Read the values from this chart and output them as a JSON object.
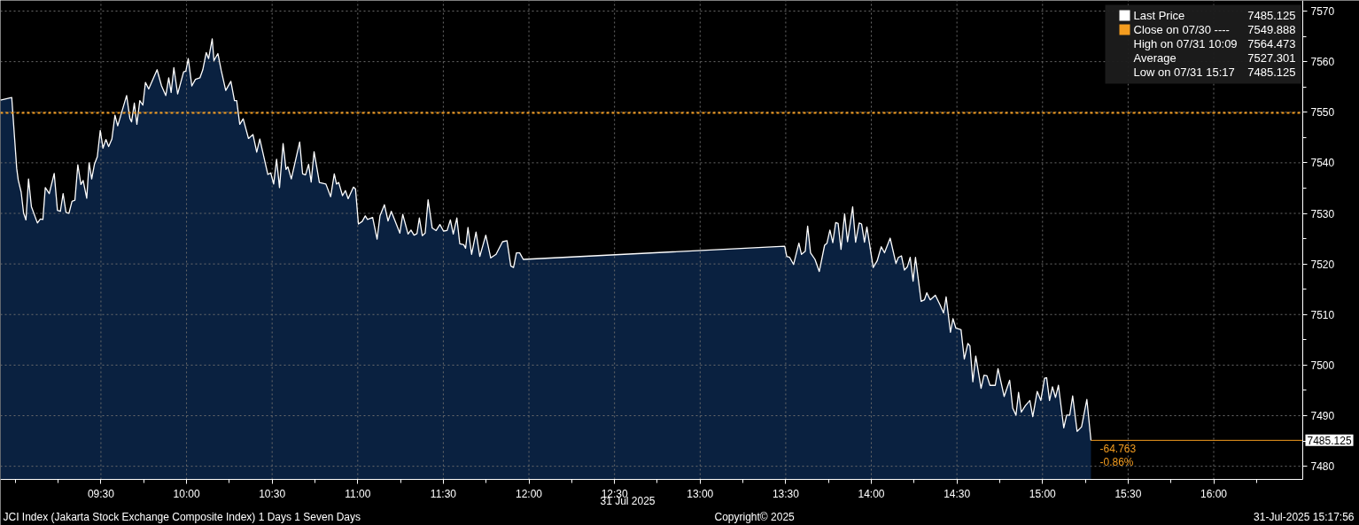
{
  "chart_data": {
    "type": "area",
    "title": "JCI Index (Jakarta Stock Exchange Composite Index) 1 Days 1 Seven Days",
    "xlabel": "31 Jul 2025",
    "x": [
      8.913,
      8.979,
      9.008,
      9.017,
      9.034,
      9.048,
      9.062,
      9.077,
      9.094,
      9.129,
      9.146,
      9.161,
      9.175,
      9.198,
      9.227,
      9.246,
      9.263,
      9.279,
      9.296,
      9.313,
      9.331,
      9.348,
      9.365,
      9.383,
      9.396,
      9.417,
      9.431,
      9.446,
      9.462,
      9.479,
      9.496,
      9.512,
      9.529,
      9.545,
      9.564,
      9.582,
      9.598,
      9.65,
      9.669,
      9.679,
      9.695,
      9.71,
      9.727,
      9.745,
      9.76,
      9.779,
      9.828,
      9.854,
      9.879,
      9.896,
      9.91,
      9.926,
      9.948,
      9.983,
      9.996,
      10.01,
      10.031,
      10.052,
      10.078,
      10.095,
      10.115,
      10.129,
      10.15,
      10.16,
      10.183,
      10.203,
      10.229,
      10.259,
      10.28,
      10.293,
      10.311,
      10.331,
      10.362,
      10.388,
      10.41,
      10.428,
      10.475,
      10.492,
      10.509,
      10.526,
      10.543,
      10.564,
      10.581,
      10.592,
      10.612,
      10.661,
      10.678,
      10.695,
      10.713,
      10.728,
      10.745,
      10.776,
      10.814,
      10.842,
      10.863,
      10.876,
      10.889,
      10.911,
      10.928,
      10.944,
      10.975,
      10.987,
      11.004,
      11.026,
      11.044,
      11.057,
      11.087,
      11.113,
      11.13,
      11.156,
      11.177,
      11.196,
      11.246,
      11.263,
      11.294,
      11.311,
      11.329,
      11.346,
      11.36,
      11.377,
      11.394,
      11.411,
      11.435,
      11.458,
      11.48,
      11.501,
      11.522,
      11.541,
      11.558,
      11.579,
      11.596,
      11.619,
      11.63,
      11.644,
      11.665,
      11.691,
      11.713,
      11.748,
      11.777,
      11.808,
      11.846,
      11.872,
      11.894,
      11.91,
      11.927,
      11.946,
      11.967,
      13.494,
      13.506,
      13.523,
      13.546,
      13.577,
      13.592,
      13.614,
      13.628,
      13.645,
      13.671,
      13.696,
      13.727,
      13.741,
      13.758,
      13.775,
      13.792,
      13.806,
      13.823,
      13.844,
      13.861,
      13.891,
      13.908,
      13.929,
      13.943,
      13.96,
      13.974,
      14.011,
      14.034,
      14.058,
      14.077,
      14.11,
      14.144,
      14.158,
      14.176,
      14.193,
      14.21,
      14.227,
      14.244,
      14.258,
      14.291,
      14.31,
      14.324,
      14.344,
      14.374,
      14.4,
      14.422,
      14.437,
      14.462,
      14.477,
      14.494,
      14.524,
      14.543,
      14.564,
      14.576,
      14.593,
      14.61,
      14.641,
      14.658,
      14.675,
      14.693,
      14.724,
      14.74,
      14.776,
      14.808,
      14.826,
      14.845,
      14.86,
      14.876,
      14.9,
      14.926,
      14.943,
      14.969,
      14.99,
      15.012,
      15.024,
      15.041,
      15.058,
      15.076,
      15.093,
      15.124,
      15.141,
      15.159,
      15.176,
      15.202,
      15.228,
      15.259,
      15.283
    ],
    "series": [
      {
        "name": "Last Price",
        "color": "#ffffff",
        "values": [
          7552.4,
          7552.9,
          7538.9,
          7536.6,
          7534.2,
          7530.1,
          7528.7,
          7536.8,
          7531.3,
          7528.1,
          7528.9,
          7528.8,
          7535.1,
          7533.9,
          7537.9,
          7530.6,
          7530.4,
          7533.9,
          7530.2,
          7530.0,
          7532.4,
          7532.6,
          7539.6,
          7535.7,
          7536.5,
          7533.0,
          7540.0,
          7536.8,
          7539.7,
          7541.2,
          7546.4,
          7542.9,
          7544.6,
          7543.2,
          7544.7,
          7549.4,
          7547.3,
          7553.3,
          7548.8,
          7548.1,
          7551.8,
          7547.6,
          7552.3,
          7551.4,
          7555.9,
          7554.6,
          7558.4,
          7555.2,
          7553.3,
          7556.8,
          7553.9,
          7558.8,
          7553.6,
          7558.0,
          7558.1,
          7560.6,
          7555.2,
          7556.5,
          7556.8,
          7558.4,
          7561.8,
          7560.6,
          7564.5,
          7560.2,
          7561.6,
          7558.2,
          7554.3,
          7556.1,
          7552.3,
          7552.3,
          7547.6,
          7548.7,
          7544.8,
          7545.6,
          7542.1,
          7544.7,
          7537.7,
          7538.0,
          7535.8,
          7540.7,
          7535.1,
          7543.8,
          7538.7,
          7539.2,
          7536.8,
          7544.1,
          7537.8,
          7537.6,
          7539.7,
          7536.2,
          7542.2,
          7536.1,
          7535.8,
          7533.3,
          7537.8,
          7535.8,
          7536.1,
          7533.5,
          7534.5,
          7532.9,
          7535.2,
          7534.8,
          7527.9,
          7528.4,
          7529.5,
          7528.8,
          7529.2,
          7524.9,
          7529.5,
          7531.7,
          7528.5,
          7530.4,
          7526.1,
          7529.8,
          7525.9,
          7526.7,
          7525.7,
          7526.0,
          7529.1,
          7525.6,
          7526.1,
          7532.7,
          7527.1,
          7526.6,
          7527.8,
          7526.5,
          7526.6,
          7528.7,
          7525.9,
          7529.1,
          7524.0,
          7523.8,
          7523.1,
          7527.2,
          7521.9,
          7526.3,
          7521.5,
          7525.7,
          7521.2,
          7521.9,
          7524.4,
          7524.6,
          7519.6,
          7519.3,
          7522.2,
          7522.2,
          7520.9,
          7523.5,
          7521.5,
          7521.3,
          7519.9,
          7524.1,
          7521.9,
          7522.5,
          7527.5,
          7522.2,
          7520.9,
          7518.5,
          7523.7,
          7524.1,
          7526.7,
          7524.2,
          7528.2,
          7528.0,
          7522.9,
          7529.9,
          7524.4,
          7531.3,
          7524.3,
          7528.1,
          7527.9,
          7524.3,
          7527.3,
          7519.3,
          7520.6,
          7523.4,
          7522.2,
          7525.1,
          7520.1,
          7521.3,
          7521.6,
          7518.8,
          7519.4,
          7521.3,
          7516.6,
          7521.3,
          7512.6,
          7512.9,
          7514.3,
          7512.9,
          7513.8,
          7512.0,
          7510.3,
          7513.5,
          7506.5,
          7509.2,
          7507.3,
          7507.0,
          7501.2,
          7504.3,
          7503.8,
          7496.7,
          7501.8,
          7495.4,
          7498.0,
          7497.9,
          7496.0,
          7496.0,
          7499.3,
          7493.8,
          7497.0,
          7491.5,
          7490.1,
          7494.6,
          7490.7,
          7492.0,
          7493.0,
          7489.8,
          7494.8,
          7493.0,
          7497.4,
          7497.5,
          7493.0,
          7495.7,
          7493.6,
          7496.0,
          7487.6,
          7490.1,
          7490.1,
          7493.9,
          7486.9,
          7487.8,
          7493.2,
          7485.1
        ]
      }
    ],
    "ref_lines": [
      {
        "axis": "y",
        "value": 7549.888,
        "label": "Close on 07/30 ----",
        "color": "#f39c1f",
        "line_style": "dotted"
      },
      {
        "axis": "y",
        "value": 7485.125,
        "label": "7485.125",
        "color": "#f39c1f",
        "line_style": "solid"
      }
    ],
    "annotations": [
      "7485.125",
      "7549.888",
      "High on 07/31 10:09",
      "7564.473",
      "Average",
      "7527.301",
      "Low on 07/31 15:17",
      "7485.125",
      {
        "text": "-64.763",
        "x": 15.283,
        "y": 7485.125
      },
      {
        "text": "-0.86%",
        "x": 15.283,
        "y": 7485.125
      },
      "Copyright© 2025",
      "31-Jul-2025 15:17:56"
    ],
    "xlim": [
      8.913,
      16.52
    ],
    "ylim": [
      7477.4,
      7572.1
    ],
    "xticks": [
      {
        "value": 9.0,
        "label": null
      },
      {
        "value": 9.25,
        "label": null
      },
      {
        "value": 9.5,
        "label": "09:30"
      },
      {
        "value": 9.75,
        "label": null
      },
      {
        "value": 10.0,
        "label": "10:00"
      },
      {
        "value": 10.25,
        "label": null
      },
      {
        "value": 10.5,
        "label": "10:30"
      },
      {
        "value": 10.75,
        "label": null
      },
      {
        "value": 11.0,
        "label": "11:00"
      },
      {
        "value": 11.25,
        "label": null
      },
      {
        "value": 11.5,
        "label": "11:30"
      },
      {
        "value": 11.75,
        "label": null
      },
      {
        "value": 12.0,
        "label": "12:00"
      },
      {
        "value": 12.25,
        "label": null
      },
      {
        "value": 12.5,
        "label": "12:30"
      },
      {
        "value": 12.75,
        "label": null
      },
      {
        "value": 13.0,
        "label": "13:00"
      },
      {
        "value": 13.25,
        "label": null
      },
      {
        "value": 13.5,
        "label": "13:30"
      },
      {
        "value": 13.75,
        "label": null
      },
      {
        "value": 14.0,
        "label": "14:00"
      },
      {
        "value": 14.25,
        "label": null
      },
      {
        "value": 14.5,
        "label": "14:30"
      },
      {
        "value": 14.75,
        "label": null
      },
      {
        "value": 15.0,
        "label": "15:00"
      },
      {
        "value": 15.25,
        "label": null
      },
      {
        "value": 15.5,
        "label": "15:30"
      },
      {
        "value": 15.75,
        "label": null
      },
      {
        "value": 16.0,
        "label": "16:00"
      },
      {
        "value": 16.25,
        "label": null
      }
    ],
    "yticks": [
      7480,
      {
        "value": 7485,
        "label": null
      },
      7490,
      {
        "value": 7495,
        "label": null
      },
      7500,
      {
        "value": 7505,
        "label": null
      },
      7510,
      {
        "value": 7515,
        "label": null
      },
      7520,
      {
        "value": 7525,
        "label": null
      },
      7530,
      {
        "value": 7535,
        "label": null
      },
      7540,
      {
        "value": 7545,
        "label": null
      },
      7550,
      {
        "value": 7555,
        "label": null
      },
      7560,
      {
        "value": 7565,
        "label": null
      },
      7570
    ],
    "grid": true,
    "legend": "top right"
  }
}
